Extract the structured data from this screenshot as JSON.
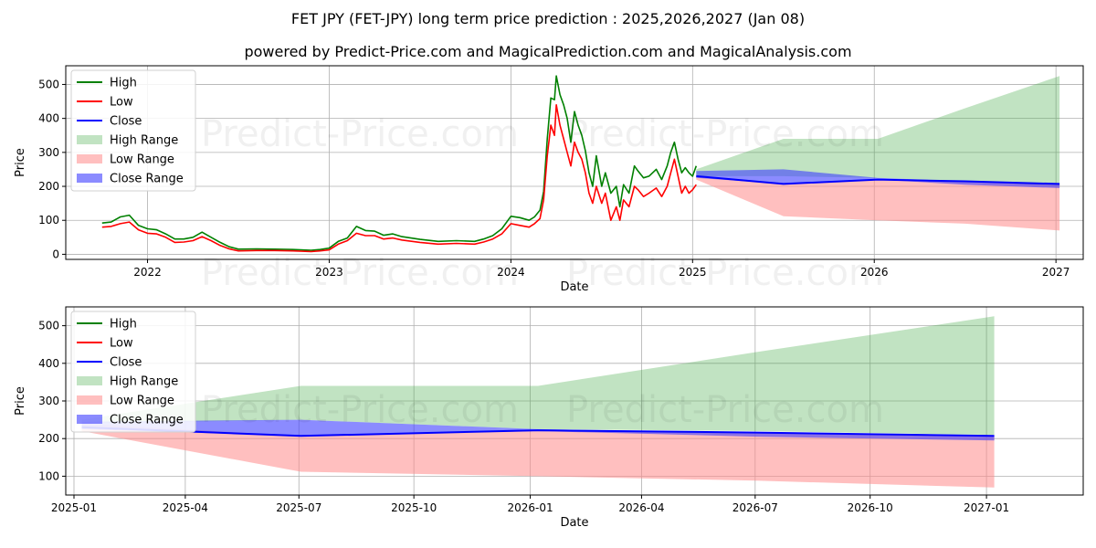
{
  "title_line1": "FET JPY (FET-JPY) long term price prediction : 2025,2026,2027 (Jan 08)",
  "title_line2": "powered by Predict-Price.com and MagicalPrediction.com and MagicalAnalysis.com",
  "watermark": "Predict-Price.com",
  "colors": {
    "high": "#008000",
    "low": "#ff0000",
    "close": "#0000ff",
    "high_range": "#4caf50",
    "low_range": "#ff8a8a",
    "close_range": "#3d3dff",
    "grid": "#b0b0b0"
  },
  "legend": [
    "High",
    "Low",
    "Close",
    "High Range",
    "Low Range",
    "Close Range"
  ],
  "chart_data": [
    {
      "type": "line",
      "title": "FET JPY (FET-JPY) long term price prediction : 2025,2026,2027 (Jan 08)",
      "xlabel": "Date",
      "ylabel": "Price",
      "xlim": [
        2021.55,
        2027.15
      ],
      "ylim": [
        -15,
        555
      ],
      "x_ticks": [
        2022,
        2023,
        2024,
        2025,
        2026,
        2027
      ],
      "x_tick_labels": [
        "2022",
        "2023",
        "2024",
        "2025",
        "2026",
        "2027"
      ],
      "y_ticks": [
        0,
        100,
        200,
        300,
        400,
        500
      ],
      "y_tick_labels": [
        "0",
        "100",
        "200",
        "300",
        "400",
        "500"
      ],
      "grid": true,
      "legend_position": "top-left",
      "history_x": [
        2021.75,
        2021.8,
        2021.85,
        2021.9,
        2021.95,
        2022.0,
        2022.05,
        2022.1,
        2022.15,
        2022.2,
        2022.25,
        2022.3,
        2022.35,
        2022.4,
        2022.45,
        2022.5,
        2022.6,
        2022.7,
        2022.8,
        2022.9,
        2022.95,
        2023.0,
        2023.05,
        2023.1,
        2023.15,
        2023.2,
        2023.25,
        2023.3,
        2023.35,
        2023.4,
        2023.5,
        2023.6,
        2023.7,
        2023.8,
        2023.85,
        2023.9,
        2023.95,
        2024.0,
        2024.05,
        2024.1,
        2024.13,
        2024.16,
        2024.18,
        2024.2,
        2024.22,
        2024.24,
        2024.25,
        2024.27,
        2024.29,
        2024.31,
        2024.33,
        2024.35,
        2024.37,
        2024.39,
        2024.41,
        2024.43,
        2024.45,
        2024.47,
        2024.5,
        2024.52,
        2024.55,
        2024.58,
        2024.6,
        2024.62,
        2024.65,
        2024.68,
        2024.7,
        2024.73,
        2024.76,
        2024.8,
        2024.83,
        2024.86,
        2024.88,
        2024.9,
        2024.92,
        2024.94,
        2024.96,
        2024.98,
        2025.0,
        2025.02
      ],
      "history_high": [
        92,
        95,
        110,
        115,
        85,
        75,
        72,
        60,
        45,
        45,
        50,
        65,
        50,
        35,
        22,
        15,
        16,
        15,
        14,
        12,
        14,
        18,
        38,
        48,
        82,
        70,
        68,
        56,
        60,
        52,
        44,
        38,
        40,
        38,
        45,
        55,
        75,
        112,
        108,
        100,
        110,
        130,
        185,
        340,
        460,
        455,
        525,
        470,
        440,
        400,
        330,
        420,
        380,
        350,
        305,
        240,
        200,
        290,
        200,
        240,
        180,
        200,
        140,
        205,
        180,
        260,
        245,
        225,
        230,
        250,
        220,
        260,
        300,
        330,
        280,
        240,
        255,
        240,
        230,
        260
      ],
      "history_low": [
        80,
        82,
        90,
        95,
        72,
        62,
        60,
        50,
        35,
        36,
        40,
        52,
        40,
        26,
        16,
        10,
        11,
        11,
        10,
        8,
        10,
        13,
        30,
        40,
        62,
        55,
        55,
        45,
        48,
        42,
        35,
        30,
        32,
        30,
        36,
        45,
        60,
        90,
        85,
        80,
        90,
        105,
        160,
        290,
        380,
        350,
        440,
        380,
        340,
        300,
        260,
        330,
        300,
        280,
        240,
        180,
        150,
        200,
        150,
        180,
        100,
        140,
        100,
        160,
        140,
        200,
        190,
        170,
        180,
        195,
        170,
        200,
        240,
        280,
        230,
        180,
        200,
        180,
        190,
        205
      ],
      "forecast_x": [
        2025.02,
        2025.5,
        2026.02,
        2026.5,
        2027.02
      ],
      "close": [
        230,
        207,
        220,
        215,
        207
      ],
      "high_range": [
        [
          230,
          250
        ],
        [
          230,
          340
        ],
        [
          225,
          340
        ],
        [
          215,
          430
        ],
        [
          200,
          525
        ]
      ],
      "low_range": [
        [
          220,
          230
        ],
        [
          112,
          207
        ],
        [
          100,
          220
        ],
        [
          90,
          215
        ],
        [
          70,
          207
        ]
      ],
      "close_range": [
        [
          225,
          245
        ],
        [
          207,
          250
        ],
        [
          220,
          225
        ],
        [
          205,
          215
        ],
        [
          195,
          207
        ]
      ]
    },
    {
      "type": "line",
      "title": "",
      "xlabel": "Date",
      "ylabel": "Price",
      "xlim": [
        2024.985,
        2027.215
      ],
      "ylim": [
        50,
        550
      ],
      "x_ticks": [
        2025.003,
        2025.247,
        2025.496,
        2025.748,
        2026.003,
        2026.247,
        2026.496,
        2026.748,
        2027.003
      ],
      "x_tick_labels": [
        "2025-01",
        "2025-04",
        "2025-07",
        "2025-10",
        "2026-01",
        "2026-04",
        "2026-07",
        "2026-10",
        "2027-01"
      ],
      "y_ticks": [
        100,
        200,
        300,
        400,
        500
      ],
      "y_tick_labels": [
        "100",
        "200",
        "300",
        "400",
        "500"
      ],
      "grid": true,
      "legend_position": "top-left",
      "forecast_x": [
        2025.02,
        2025.5,
        2026.02,
        2026.5,
        2027.02
      ],
      "close": [
        230,
        207,
        222,
        216,
        207
      ],
      "high_range": [
        [
          240,
          250
        ],
        [
          250,
          340
        ],
        [
          225,
          340
        ],
        [
          220,
          430
        ],
        [
          210,
          525
        ]
      ],
      "low_range": [
        [
          220,
          240
        ],
        [
          112,
          207
        ],
        [
          100,
          222
        ],
        [
          88,
          216
        ],
        [
          70,
          207
        ]
      ],
      "close_range": [
        [
          225,
          245
        ],
        [
          207,
          250
        ],
        [
          220,
          225
        ],
        [
          205,
          216
        ],
        [
          195,
          207
        ]
      ]
    }
  ]
}
